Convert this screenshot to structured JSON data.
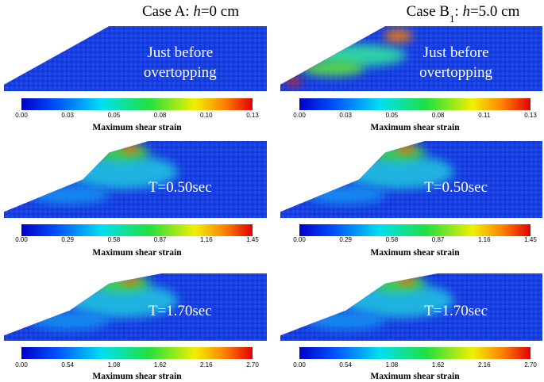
{
  "columns": [
    {
      "title": [
        {
          "text": "Case A: ",
          "style": "normal"
        },
        {
          "text": "h",
          "style": "italic"
        },
        {
          "text": "=0 cm",
          "style": "normal"
        }
      ]
    },
    {
      "title": [
        {
          "text": "Case B",
          "style": "normal"
        },
        {
          "text": "1",
          "style": "sub"
        },
        {
          "text": ": ",
          "style": "normal"
        },
        {
          "text": "h",
          "style": "italic"
        },
        {
          "text": "=5.0 cm",
          "style": "normal"
        }
      ]
    }
  ],
  "panels": [
    {
      "label": [
        "Just before",
        "overtopping"
      ],
      "colorbar": {
        "ticks": [
          "0.00",
          "0.03",
          "0.05",
          "0.08",
          "0.10",
          "0.13"
        ],
        "label": "Maximum shear strain"
      }
    },
    {
      "label": [
        "Just before",
        "overtopping"
      ],
      "colorbar": {
        "ticks": [
          "0.00",
          "0.03",
          "0.05",
          "0.08",
          "0.11",
          "0.13"
        ],
        "label": "Maximum shear strain"
      }
    },
    {
      "label": [
        "T=0.50sec"
      ],
      "colorbar": {
        "ticks": [
          "0.00",
          "0.29",
          "0.58",
          "0.87",
          "1.16",
          "1.45"
        ],
        "label": "Maximum shear strain"
      }
    },
    {
      "label": [
        "T=0.50sec"
      ],
      "colorbar": {
        "ticks": [
          "0.00",
          "0.29",
          "0.58",
          "0.87",
          "1.16",
          "1.45"
        ],
        "label": "Maximum shear strain"
      }
    },
    {
      "label": [
        "T=1.70sec"
      ],
      "colorbar": {
        "ticks": [
          "0.00",
          "0.54",
          "1.08",
          "1.62",
          "2.16",
          "2.70"
        ],
        "label": "Maximum shear strain"
      }
    },
    {
      "label": [
        "T=1.70sec"
      ],
      "colorbar": {
        "ticks": [
          "0.00",
          "0.54",
          "1.08",
          "1.62",
          "2.16",
          "2.70"
        ],
        "label": "Maximum shear strain"
      }
    }
  ]
}
